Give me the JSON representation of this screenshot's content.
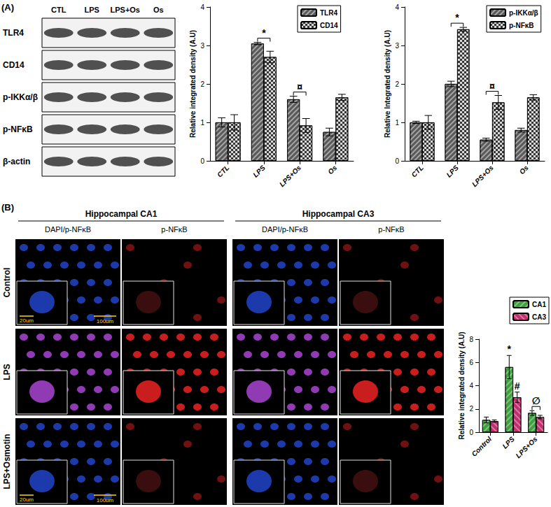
{
  "chart_data": [
    {
      "type": "bar",
      "categories": [
        "CTL",
        "LPS",
        "LPS+Os",
        "Os"
      ],
      "series": [
        {
          "name": "TLR4",
          "color": "#595959",
          "values": [
            1.0,
            3.05,
            1.6,
            0.75
          ],
          "errors": [
            0.12,
            0.03,
            0.08,
            0.1
          ]
        },
        {
          "name": "CD14",
          "color": "#d9d9d9",
          "values": [
            1.0,
            2.7,
            0.92,
            1.65
          ],
          "errors": [
            0.2,
            0.15,
            0.18,
            0.08
          ]
        }
      ],
      "ylabel": "Relative integrated density (A.U)",
      "ylim": [
        0,
        4
      ],
      "yticks": [
        0,
        1,
        2,
        3,
        4
      ],
      "grid": false,
      "legend": "upper right",
      "annotations": [
        {
          "text": "*",
          "category": "LPS"
        },
        {
          "text": "¤",
          "category": "LPS+Os"
        }
      ]
    },
    {
      "type": "bar",
      "categories": [
        "CTL",
        "LPS",
        "LPS+Os",
        "Os"
      ],
      "series": [
        {
          "name": "p-IKKα/β",
          "color": "#595959",
          "values": [
            1.0,
            2.0,
            0.55,
            0.8
          ],
          "errors": [
            0.03,
            0.07,
            0.04,
            0.05
          ]
        },
        {
          "name": "p-NFκB",
          "color": "#d9d9d9",
          "values": [
            1.0,
            3.42,
            1.52,
            1.65
          ],
          "errors": [
            0.18,
            0.05,
            0.18,
            0.07
          ]
        }
      ],
      "ylabel": "Relative Integrated density (A.U)",
      "ylim": [
        0,
        4
      ],
      "yticks": [
        0,
        1,
        2,
        3,
        4
      ],
      "grid": false,
      "legend": "upper right",
      "annotations": [
        {
          "text": "*",
          "category": "LPS"
        },
        {
          "text": "¤",
          "category": "LPS+Os"
        }
      ]
    },
    {
      "type": "bar",
      "categories": [
        "Control",
        "LPS",
        "LPS+Os"
      ],
      "series": [
        {
          "name": "CA1",
          "color": "#3fa03f",
          "values": [
            1.05,
            5.6,
            1.65
          ],
          "errors": [
            0.25,
            1.0,
            0.2
          ]
        },
        {
          "name": "CA3",
          "color": "#c0306e",
          "values": [
            0.95,
            3.0,
            1.3
          ],
          "errors": [
            0.1,
            0.45,
            0.15
          ]
        }
      ],
      "ylabel": "Relative integrated density (A.U)",
      "ylim": [
        0,
        8
      ],
      "yticks": [
        0,
        2,
        4,
        6,
        8
      ],
      "grid": false,
      "legend": "upper right",
      "annotations": [
        {
          "text": "*",
          "category": "LPS",
          "series": "CA1"
        },
        {
          "text": "#",
          "category": "LPS",
          "series": "CA3"
        },
        {
          "text": "∅",
          "category": "LPS+Os"
        }
      ]
    }
  ],
  "figure": {
    "panel_labels": [
      "(A)",
      "(B)"
    ],
    "blot": {
      "lanes": [
        "CTL",
        "LPS",
        "LPS+Os",
        "Os"
      ],
      "rows": [
        "TLR4",
        "CD14",
        "p-IKKα/β",
        "p-NFκB",
        "β-actin"
      ]
    },
    "micrographs": {
      "regions": [
        {
          "title": "Hippocampal CA1",
          "columns": [
            "DAPI/p-NFκB",
            "p-NFκB"
          ]
        },
        {
          "title": "Hippocampal CA3",
          "columns": [
            "DAPI/p-NFκB",
            "p-NFκB"
          ]
        }
      ],
      "rows": [
        {
          "label": "Control",
          "scale_bars": [
            "20um",
            "100um"
          ]
        },
        {
          "label": "LPS"
        },
        {
          "label": "LPS+Osmotin",
          "scale_bars": [
            "20um",
            "100um"
          ]
        }
      ]
    }
  }
}
